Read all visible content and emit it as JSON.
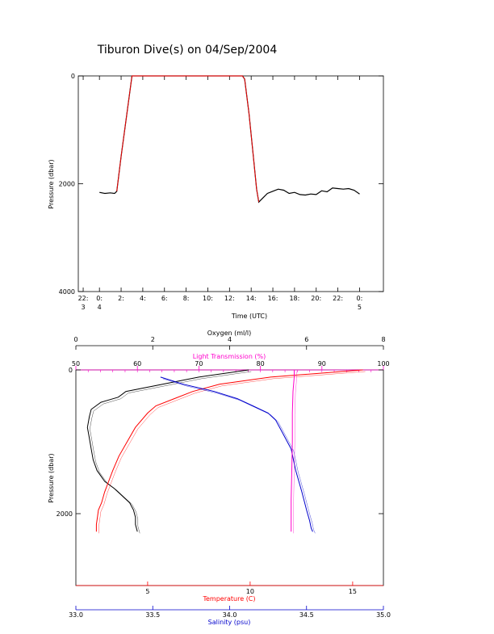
{
  "title": "Tiburon Dive(s) on 04/Sep/2004",
  "chart_data": [
    {
      "type": "line",
      "name": "dive-profile",
      "xlabel": "Time (UTC)",
      "ylabel": "Pressure (dbar)",
      "x_unit": "hours since 04/Sep 00:00 UTC",
      "xlim": [
        -1.95,
        26.2
      ],
      "ylim": [
        4000,
        0
      ],
      "x_ticks": [
        {
          "v": -1.5,
          "l1": "22:",
          "l2": "3"
        },
        {
          "v": 0,
          "l1": "0:",
          "l2": "4"
        },
        {
          "v": 2,
          "l1": "2:",
          "l2": ""
        },
        {
          "v": 4,
          "l1": "4:",
          "l2": ""
        },
        {
          "v": 6,
          "l1": "6:",
          "l2": ""
        },
        {
          "v": 8,
          "l1": "8:",
          "l2": ""
        },
        {
          "v": 10,
          "l1": "10:",
          "l2": ""
        },
        {
          "v": 12,
          "l1": "12:",
          "l2": ""
        },
        {
          "v": 14,
          "l1": "14:",
          "l2": ""
        },
        {
          "v": 16,
          "l1": "16:",
          "l2": ""
        },
        {
          "v": 18,
          "l1": "18:",
          "l2": ""
        },
        {
          "v": 20,
          "l1": "20:",
          "l2": ""
        },
        {
          "v": 22,
          "l1": "22:",
          "l2": ""
        },
        {
          "v": 24,
          "l1": "0:",
          "l2": "5"
        }
      ],
      "y_ticks": [
        0,
        2000,
        4000
      ],
      "series": [
        {
          "color": "#000000",
          "x": [
            0.0,
            0.5,
            1.0,
            1.4,
            1.6,
            2.0,
            2.4,
            2.8,
            3.0,
            13.2,
            13.4,
            13.8,
            14.2,
            14.5,
            14.7,
            15.0,
            15.5,
            16.0,
            16.5,
            17.0,
            17.5,
            18.0,
            18.5,
            19.0,
            19.5,
            20.0,
            20.5,
            21.0,
            21.5,
            22.0,
            22.5,
            23.0,
            23.5,
            24.0
          ],
          "y": [
            2160,
            2180,
            2170,
            2180,
            2140,
            1500,
            900,
            300,
            0,
            0,
            60,
            700,
            1500,
            2100,
            2340,
            2280,
            2180,
            2140,
            2100,
            2120,
            2180,
            2160,
            2200,
            2210,
            2190,
            2200,
            2130,
            2150,
            2080,
            2090,
            2100,
            2090,
            2120,
            2190
          ]
        },
        {
          "color": "#ff0000",
          "x": [
            1.6,
            2.0,
            2.4,
            2.8,
            3.0,
            13.2,
            13.4,
            13.8,
            14.2,
            14.5,
            14.7
          ],
          "y": [
            2140,
            1500,
            900,
            300,
            0,
            0,
            60,
            700,
            1500,
            2100,
            2340
          ]
        }
      ]
    },
    {
      "type": "line",
      "name": "cast-profiles",
      "ylabel": "Pressure (dbar)",
      "ylim": [
        3000,
        0
      ],
      "y_ticks": [
        0,
        2000
      ],
      "axes": {
        "oxygen": {
          "label": "Oxygen (ml/l)",
          "lim": [
            0,
            8
          ],
          "ticks": [
            0,
            2,
            4,
            6,
            8
          ],
          "color": "#000000"
        },
        "light_transmission": {
          "label": "Light Transmission (%)",
          "lim": [
            50,
            100
          ],
          "ticks": [
            50,
            60,
            70,
            80,
            90,
            100
          ],
          "color": "#ff00cc"
        },
        "temperature": {
          "label": "Temperature (C)",
          "lim": [
            1.5,
            16.5
          ],
          "ticks": [
            5,
            10,
            15
          ],
          "color": "#ff0000"
        },
        "salinity": {
          "label": "Salinity (psu)",
          "lim": [
            33.0,
            35.0
          ],
          "ticks": [
            "33.0",
            "33.5",
            "34.0",
            "34.5",
            "35.0"
          ],
          "color": "#0000cc"
        }
      },
      "series": [
        {
          "axis": "oxygen",
          "color": "#000000",
          "values": [
            4.5,
            3.2,
            1.3,
            1.2,
            1.1,
            0.65,
            0.4,
            0.35,
            0.3,
            0.35,
            0.4,
            0.45,
            0.55,
            0.75,
            1.0,
            1.2,
            1.4,
            1.5,
            1.55,
            1.55,
            1.6
          ],
          "pressure": [
            0,
            100,
            300,
            340,
            380,
            450,
            550,
            650,
            800,
            950,
            1100,
            1250,
            1400,
            1550,
            1650,
            1750,
            1850,
            1950,
            2050,
            2150,
            2250
          ]
        },
        {
          "axis": "temperature",
          "color": "#ff0000",
          "values": [
            15.5,
            11.0,
            8.5,
            7.2,
            6.3,
            5.4,
            5.0,
            4.4,
            4.0,
            3.6,
            3.3,
            3.1,
            2.9,
            2.75,
            2.6,
            2.55,
            2.5,
            2.5
          ],
          "pressure": [
            0,
            100,
            200,
            300,
            400,
            500,
            600,
            800,
            1000,
            1200,
            1400,
            1550,
            1700,
            1850,
            1950,
            2050,
            2150,
            2250
          ]
        },
        {
          "axis": "salinity",
          "color": "#0000cc",
          "values": [
            33.55,
            33.7,
            33.9,
            34.05,
            34.15,
            34.25,
            34.3,
            34.35,
            34.4,
            34.43,
            34.47,
            34.5,
            34.52,
            34.53,
            34.54
          ],
          "pressure": [
            100,
            200,
            300,
            400,
            500,
            600,
            700,
            900,
            1100,
            1400,
            1700,
            1950,
            2100,
            2200,
            2250
          ]
        },
        {
          "axis": "light_transmission",
          "color": "#ff00cc",
          "values": [
            85.5,
            85.5,
            85.3,
            85.2,
            85.2,
            85.1,
            85.0,
            85.0,
            85.0
          ],
          "pressure": [
            0,
            100,
            300,
            600,
            1000,
            1400,
            1800,
            2100,
            2250
          ]
        }
      ]
    }
  ]
}
